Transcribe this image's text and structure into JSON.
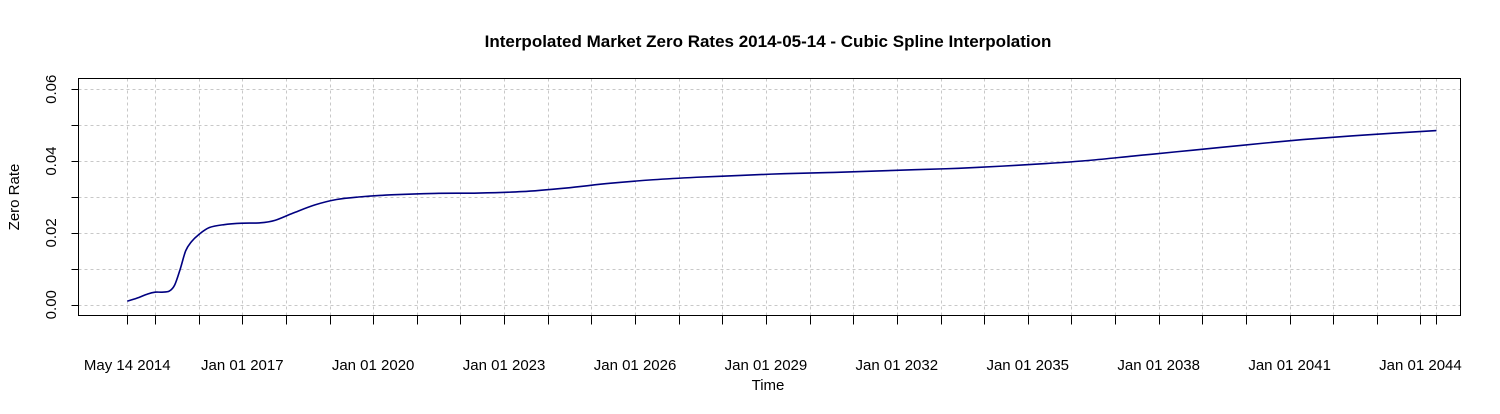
{
  "chart_data": {
    "type": "line",
    "title": "Interpolated Market Zero Rates 2014-05-14 - Cubic Spline Interpolation",
    "xlabel": "Time",
    "ylabel": "Zero Rate",
    "x_range": [
      "2013-04-01",
      "2044-12-01"
    ],
    "ylim": [
      -0.003,
      0.063
    ],
    "grid": true,
    "legend": "none",
    "colors": {
      "line": "#000080",
      "grid": "#c8c8c8",
      "axis": "#000000"
    },
    "y_ticks": [
      {
        "value": 0.0,
        "label": "0.00"
      },
      {
        "value": 0.02,
        "label": "0.02"
      },
      {
        "value": 0.04,
        "label": "0.04"
      },
      {
        "value": 0.06,
        "label": "0.06"
      }
    ],
    "y_minor_ticks": [
      0.01,
      0.03,
      0.05
    ],
    "x_ticks": [
      {
        "date": "2014-05-14",
        "label": "May 14 2014"
      },
      {
        "date": "2017-01-01",
        "label": "Jan 01 2017"
      },
      {
        "date": "2020-01-01",
        "label": "Jan 01 2020"
      },
      {
        "date": "2023-01-01",
        "label": "Jan 01 2023"
      },
      {
        "date": "2026-01-01",
        "label": "Jan 01 2026"
      },
      {
        "date": "2029-01-01",
        "label": "Jan 01 2029"
      },
      {
        "date": "2032-01-01",
        "label": "Jan 01 2032"
      },
      {
        "date": "2035-01-01",
        "label": "Jan 01 2035"
      },
      {
        "date": "2038-01-01",
        "label": "Jan 01 2038"
      },
      {
        "date": "2041-01-01",
        "label": "Jan 01 2041"
      },
      {
        "date": "2044-01-01",
        "label": "Jan 01 2044"
      }
    ],
    "x_minor_ticks": [
      "2015-01-01",
      "2016-01-01",
      "2018-01-01",
      "2019-01-01",
      "2021-01-01",
      "2022-01-01",
      "2024-01-01",
      "2025-01-01",
      "2027-01-01",
      "2028-01-01",
      "2030-01-01",
      "2031-01-01",
      "2033-01-01",
      "2034-01-01",
      "2036-01-01",
      "2037-01-01",
      "2039-01-01",
      "2040-01-01",
      "2042-01-01",
      "2043-01-01",
      "2044-05-14"
    ],
    "series": [
      {
        "points": [
          [
            "2014-05-14",
            0.001
          ],
          [
            "2014-08-01",
            0.0018
          ],
          [
            "2014-11-01",
            0.003
          ],
          [
            "2015-01-01",
            0.0035
          ],
          [
            "2015-03-01",
            0.0035
          ],
          [
            "2015-05-01",
            0.0038
          ],
          [
            "2015-06-15",
            0.0055
          ],
          [
            "2015-08-01",
            0.01
          ],
          [
            "2015-09-15",
            0.015
          ],
          [
            "2015-11-01",
            0.0175
          ],
          [
            "2016-01-01",
            0.0195
          ],
          [
            "2016-04-01",
            0.0215
          ],
          [
            "2016-08-01",
            0.0223
          ],
          [
            "2017-01-01",
            0.0227
          ],
          [
            "2017-06-01",
            0.0228
          ],
          [
            "2017-10-01",
            0.0235
          ],
          [
            "2018-03-01",
            0.0255
          ],
          [
            "2018-09-01",
            0.0278
          ],
          [
            "2019-03-01",
            0.0293
          ],
          [
            "2019-09-01",
            0.03
          ],
          [
            "2020-06-01",
            0.0306
          ],
          [
            "2021-06-01",
            0.031
          ],
          [
            "2022-06-01",
            0.0311
          ],
          [
            "2023-06-01",
            0.0315
          ],
          [
            "2024-06-01",
            0.0325
          ],
          [
            "2025-06-01",
            0.0338
          ],
          [
            "2026-06-01",
            0.0348
          ],
          [
            "2027-06-01",
            0.0355
          ],
          [
            "2028-06-01",
            0.036
          ],
          [
            "2029-06-01",
            0.0365
          ],
          [
            "2030-06-01",
            0.0368
          ],
          [
            "2031-06-01",
            0.0372
          ],
          [
            "2032-06-01",
            0.0376
          ],
          [
            "2033-06-01",
            0.038
          ],
          [
            "2034-06-01",
            0.0386
          ],
          [
            "2035-06-01",
            0.0393
          ],
          [
            "2036-06-01",
            0.0402
          ],
          [
            "2037-06-01",
            0.0414
          ],
          [
            "2038-06-01",
            0.0426
          ],
          [
            "2039-06-01",
            0.0438
          ],
          [
            "2040-06-01",
            0.045
          ],
          [
            "2041-06-01",
            0.0461
          ],
          [
            "2042-06-01",
            0.047
          ],
          [
            "2043-06-01",
            0.0478
          ],
          [
            "2044-05-14",
            0.0485
          ]
        ]
      }
    ]
  }
}
